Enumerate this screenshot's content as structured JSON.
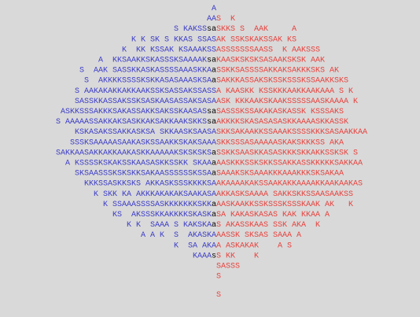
{
  "lines": [
    {
      "blue": "A"
    },
    {
      "blue": "AA",
      "red": "S  K"
    },
    {
      "blue": "S KAKSS",
      "black": "sa",
      "red": "SKKS S  AAK     A"
    },
    {
      "blue": "K K SK S KKAS SSAS",
      "red": "AK SSKSKAKSSAK KS"
    },
    {
      "blue": "K  KK KSSAK KSAAAKSS",
      "red": "ASSSSSSSAASS  K AAKSSS"
    },
    {
      "blue": "A  KKSAAKKSKASSSKSAAAAK",
      "black": "sa",
      "red": "KAASKSKSKSASAAKSKSK AAK"
    },
    {
      "blue": "S  AAK SASSKKASKASSSSAAASKKA",
      "black": "a",
      "red": "SSKKSASSSSAKKAKSAKKKSKS AK"
    },
    {
      "blue": "S  AKKKKSSSSKSKKASASAAASKSA",
      "black": "a",
      "red": "SAKKKASSAKSKSSKSSSKSSAAKKSKS"
    },
    {
      "blue": "S AAKAKAKKAKKAAKSSKSASSAKSSASS",
      "red": "A KAASKK KSSKKKAAKKAAKAAA S K"
    },
    {
      "blue": "SASSKKASSAKSSKSASKAASASSAKSASA",
      "red": "ASK KKKAAKSKAAKSSSSSAASKAAAA K"
    },
    {
      "blue": "ASKKSSSAKKKSAKASSAKKSAKSSKAASAS",
      "black": "sa",
      "red": "SASSSKSSAKAKASKASSK KSSSAKS"
    },
    {
      "blue": "S AAAAASSAKKAKSASKKAKSAKKAAKSKKS",
      "black": "sa",
      "red": "AKKKKSKASASASASKKAAAASKKASSK"
    },
    {
      "blue": "KSKASAKSSAKKASKSA SKKAASKSAASA",
      "red": "SKKSAKAAKKSSAAAKSSSSKKKSASAAKKAA"
    },
    {
      "blue": "SSSKSAAAAASAAKASKSSAAKKSKAKSAAA",
      "red": "SKKSSSASAAAAASKAKSKKKSS AKA"
    },
    {
      "blue": "SAKKAASAKKAKKAAKASKKAAAAAKSKSKSKS",
      "black": "a",
      "red": "SSKKSAASKKASASKKKSKKAKKSSKSK S"
    },
    {
      "blue": "A KSSSSKSKAKSSKAASASKKSSKK SKAA",
      "black": "a",
      "red": "AASKKKSSKSKKSSAKKASSKKKKKSAKKAA"
    },
    {
      "blue": "SKSAASSSKSKSKKSAKAASSSSSSKSSA",
      "black": "a",
      "red": "SAAAKSKSAAAKKKAAAKKKSKSAKAA"
    },
    {
      "blue": "KKKSSASKKSKS AKKASKSSSKKKKSA",
      "red": "AKAAAAKAKSSAAKAKKAAAAKKAAKAAKAS"
    },
    {
      "blue": "K SKK KA AKKKAKAKAKSAAKASA",
      "red": "AKKASKSAAAA SAKKSKKSSAASAAKSS"
    },
    {
      "blue": "K SSAAASSSSASKKKKKKKSKK",
      "black": "a",
      "red": "AASKAAKKSSKSSSKSSSKAAK AK   K"
    },
    {
      "blue": "KS  AKSSSKKAKKKKSKASK",
      "black": "a",
      "red": "SA KAKASKASAS KAK KKAA A"
    },
    {
      "blue": "K K  SAAA S KAKSKA",
      "black": "a",
      "red": "S AKASSKAAS SSK AKA  K"
    },
    {
      "blue": "A A K  S  AKASKA",
      "red": "AASSK SKSAS SAAA A"
    },
    {
      "blue": "K  SA AKA",
      "red": "A ASKAKAK    A S"
    },
    {
      "blue": "KAAA",
      "black": "s",
      "red": "S KK    K"
    },
    {
      "red": "SASSS"
    },
    {
      "red": "S"
    },
    {
      "red": "S"
    }
  ]
}
